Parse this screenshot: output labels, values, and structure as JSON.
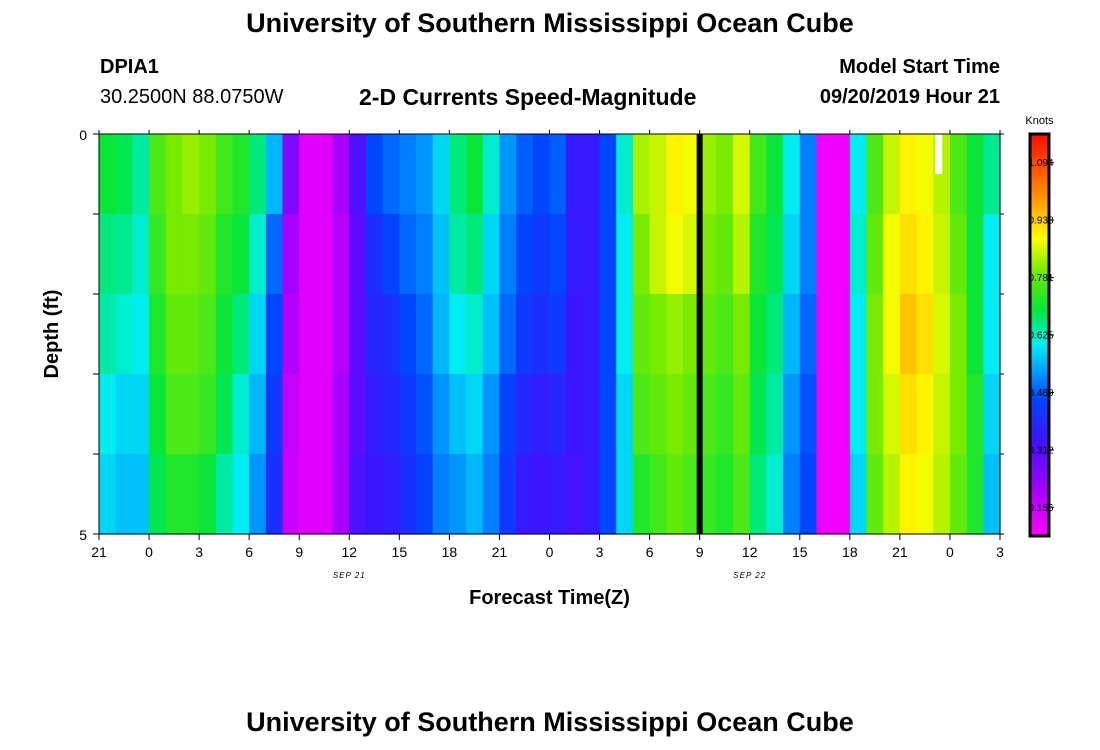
{
  "header": {
    "title": "University of Southern Mississippi Ocean Cube",
    "station_id": "DPIA1",
    "station_coords": "30.2500N 88.0750W",
    "chart_title": "2-D Currents Speed-Magnitude",
    "model_start_label": "Model Start Time",
    "model_start_value": "09/20/2019 Hour 21"
  },
  "footer": {
    "title": "University of Southern Mississippi Ocean Cube"
  },
  "chart_data": {
    "type": "heatmap",
    "title": "2-D Currents Speed-Magnitude",
    "xlabel": "Forecast Time(Z)",
    "ylabel": "Depth (ft)",
    "x_tick_labels": [
      "21",
      "0",
      "3",
      "6",
      "9",
      "12",
      "15",
      "18",
      "21",
      "0",
      "3",
      "6",
      "9",
      "12",
      "15",
      "18",
      "21",
      "0",
      "3"
    ],
    "x_hours": [
      0,
      3,
      6,
      9,
      12,
      15,
      18,
      21,
      24,
      27,
      30,
      33,
      36,
      39,
      42,
      45,
      48,
      51,
      54
    ],
    "date_labels": [
      {
        "hour": 15,
        "text": "SEP 21"
      },
      {
        "hour": 39,
        "text": "SEP 22"
      }
    ],
    "y_tick_labels": [
      "0",
      "5"
    ],
    "ylim": [
      0,
      5
    ],
    "colorbar": {
      "label": "Knots",
      "tick_labels": [
        "1.094",
        "0.938",
        "0.781",
        "0.625",
        "0.469",
        "0.312",
        "0.156"
      ],
      "range": [
        0.078,
        1.172
      ]
    },
    "depth_rows": 5,
    "time_columns": 54,
    "speed_knots_by_depth": [
      [
        0.7,
        0.68,
        0.64,
        0.76,
        0.8,
        0.82,
        0.8,
        0.75,
        0.72,
        0.66,
        0.55,
        0.25,
        0.12,
        0.12,
        0.2,
        0.32,
        0.45,
        0.48,
        0.5,
        0.52,
        0.58,
        0.66,
        0.7,
        0.62,
        0.52,
        0.47,
        0.45,
        0.47,
        0.35,
        0.35,
        0.45,
        0.62,
        0.83,
        0.85,
        0.9,
        0.88,
        0.82,
        0.8,
        0.86,
        0.75,
        0.7,
        0.6,
        0.5,
        0.1,
        0.1,
        0.6,
        0.76,
        0.85,
        0.9,
        0.88,
        0.84,
        0.76,
        0.7,
        0.65
      ],
      [
        0.66,
        0.65,
        0.62,
        0.74,
        0.8,
        0.8,
        0.78,
        0.72,
        0.7,
        0.62,
        0.48,
        0.2,
        0.12,
        0.12,
        0.18,
        0.3,
        0.4,
        0.44,
        0.48,
        0.5,
        0.56,
        0.64,
        0.66,
        0.58,
        0.5,
        0.45,
        0.42,
        0.45,
        0.35,
        0.35,
        0.45,
        0.6,
        0.8,
        0.85,
        0.88,
        0.86,
        0.8,
        0.78,
        0.84,
        0.72,
        0.68,
        0.58,
        0.5,
        0.1,
        0.1,
        0.62,
        0.78,
        0.88,
        0.92,
        0.9,
        0.85,
        0.78,
        0.7,
        0.6
      ],
      [
        0.64,
        0.62,
        0.6,
        0.72,
        0.78,
        0.78,
        0.76,
        0.7,
        0.66,
        0.58,
        0.45,
        0.18,
        0.12,
        0.12,
        0.18,
        0.3,
        0.38,
        0.4,
        0.45,
        0.48,
        0.55,
        0.6,
        0.62,
        0.56,
        0.48,
        0.42,
        0.4,
        0.42,
        0.34,
        0.35,
        0.45,
        0.6,
        0.78,
        0.8,
        0.82,
        0.8,
        0.78,
        0.76,
        0.8,
        0.7,
        0.66,
        0.55,
        0.48,
        0.1,
        0.1,
        0.6,
        0.8,
        0.88,
        0.95,
        0.92,
        0.86,
        0.8,
        0.7,
        0.6
      ],
      [
        0.6,
        0.58,
        0.58,
        0.7,
        0.76,
        0.76,
        0.74,
        0.68,
        0.62,
        0.55,
        0.42,
        0.16,
        0.12,
        0.12,
        0.2,
        0.3,
        0.36,
        0.38,
        0.42,
        0.46,
        0.52,
        0.56,
        0.58,
        0.52,
        0.44,
        0.38,
        0.36,
        0.38,
        0.34,
        0.35,
        0.45,
        0.58,
        0.76,
        0.78,
        0.8,
        0.78,
        0.76,
        0.74,
        0.78,
        0.68,
        0.64,
        0.52,
        0.46,
        0.1,
        0.1,
        0.6,
        0.8,
        0.86,
        0.92,
        0.9,
        0.85,
        0.8,
        0.72,
        0.58
      ],
      [
        0.58,
        0.56,
        0.56,
        0.68,
        0.72,
        0.72,
        0.7,
        0.64,
        0.6,
        0.52,
        0.4,
        0.15,
        0.12,
        0.12,
        0.2,
        0.32,
        0.34,
        0.36,
        0.4,
        0.44,
        0.5,
        0.52,
        0.55,
        0.5,
        0.42,
        0.35,
        0.34,
        0.35,
        0.33,
        0.35,
        0.45,
        0.58,
        0.72,
        0.75,
        0.78,
        0.76,
        0.74,
        0.72,
        0.76,
        0.66,
        0.62,
        0.5,
        0.45,
        0.1,
        0.1,
        0.58,
        0.78,
        0.84,
        0.9,
        0.88,
        0.84,
        0.78,
        0.72,
        0.56
      ]
    ]
  }
}
